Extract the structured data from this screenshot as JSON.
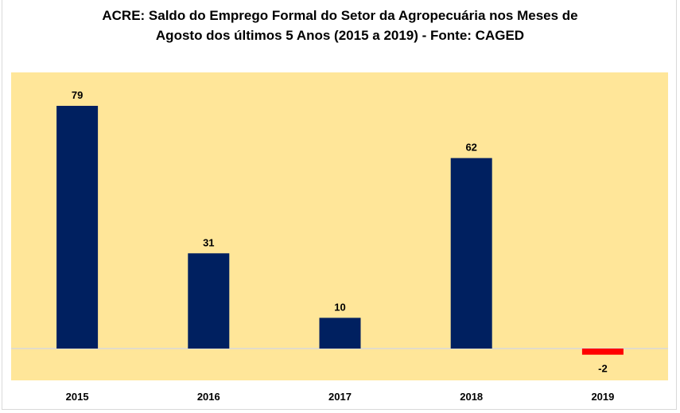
{
  "chart_data": {
    "type": "bar",
    "title_line1": "ACRE: Saldo do Emprego Formal do Setor da Agropecuária nos Meses de",
    "title_line2": "Agosto dos últimos 5 Anos (2015 a 2019) -  Fonte: CAGED",
    "categories": [
      "2015",
      "2016",
      "2017",
      "2018",
      "2019"
    ],
    "values": [
      79,
      31,
      10,
      62,
      -2
    ],
    "data_labels": [
      "79",
      "31",
      "10",
      "62",
      "-2"
    ],
    "xlabel": "",
    "ylabel": "",
    "ylim": [
      -10.4,
      89
    ],
    "grid": false,
    "legend": "none",
    "colors": {
      "positive_bar": "#002060",
      "negative_bar": "#ff0000",
      "plot_background": "#ffe699",
      "zero_line": "#d9d9d9"
    }
  }
}
